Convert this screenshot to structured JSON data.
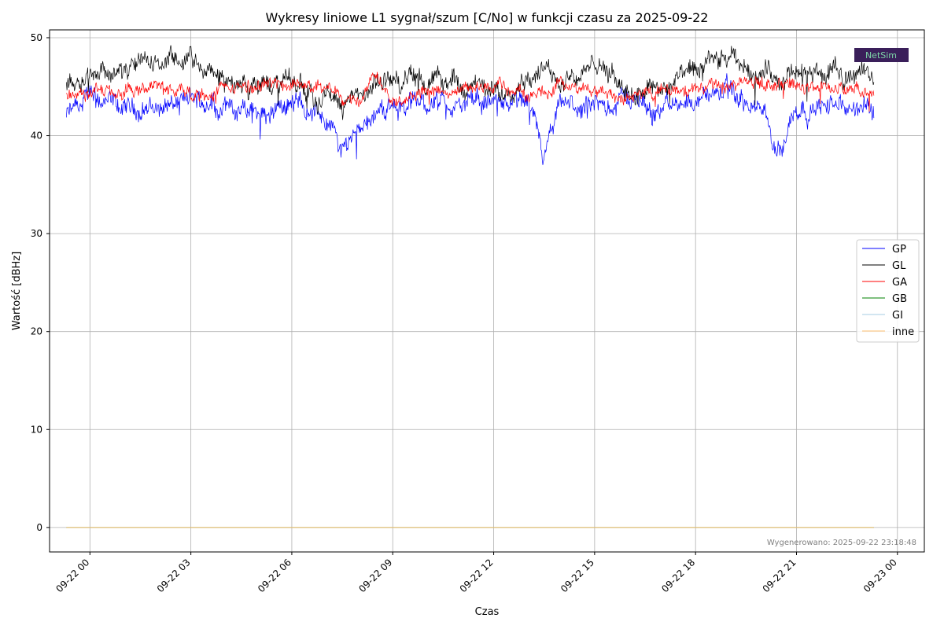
{
  "chart_data": {
    "type": "line",
    "title": "Wykresy liniowe L1 sygnał/szum [C/No] w funkcji czasu za 2025-09-22",
    "xlabel": "Czas",
    "ylabel": "Wartość [dBHz]",
    "ylim": [
      -2.5,
      50.8
    ],
    "xlim": [
      "2025-09-21 22:48",
      "2025-09-23 00:48"
    ],
    "x_start": "2025-09-21 23:18",
    "x_end": "2025-09-22 23:18",
    "grid": true,
    "legend_position": "center-right",
    "y_ticks": [
      0,
      10,
      20,
      30,
      40,
      50
    ],
    "x_ticks": [
      {
        "value": "2025-09-22 00:00",
        "label": "09-22 00"
      },
      {
        "value": "2025-09-22 03:00",
        "label": "09-22 03"
      },
      {
        "value": "2025-09-22 06:00",
        "label": "09-22 06"
      },
      {
        "value": "2025-09-22 09:00",
        "label": "09-22 09"
      },
      {
        "value": "2025-09-22 12:00",
        "label": "09-22 12"
      },
      {
        "value": "2025-09-22 15:00",
        "label": "09-22 15"
      },
      {
        "value": "2025-09-22 18:00",
        "label": "09-22 18"
      },
      {
        "value": "2025-09-22 21:00",
        "label": "09-22 21"
      },
      {
        "value": "2025-09-23 00:00",
        "label": "09-23 00"
      }
    ],
    "series": [
      {
        "name": "GP",
        "color": "#0000ff",
        "x": [
          "2025-09-21 23:18",
          "2025-09-22 00:00",
          "2025-09-22 01:00",
          "2025-09-22 02:00",
          "2025-09-22 03:00",
          "2025-09-22 04:00",
          "2025-09-22 05:00",
          "2025-09-22 06:00",
          "2025-09-22 07:00",
          "2025-09-22 07:30",
          "2025-09-22 08:00",
          "2025-09-22 09:00",
          "2025-09-22 10:00",
          "2025-09-22 11:00",
          "2025-09-22 12:00",
          "2025-09-22 13:00",
          "2025-09-22 13:30",
          "2025-09-22 14:00",
          "2025-09-22 15:00",
          "2025-09-22 16:00",
          "2025-09-22 17:00",
          "2025-09-22 18:00",
          "2025-09-22 19:00",
          "2025-09-22 20:00",
          "2025-09-22 20:30",
          "2025-09-22 21:00",
          "2025-09-22 22:00",
          "2025-09-22 23:18"
        ],
        "values": [
          42.0,
          43.5,
          42.5,
          43.0,
          43.5,
          43.0,
          42.5,
          43.5,
          42.0,
          38.5,
          41.5,
          43.0,
          43.5,
          43.0,
          43.5,
          43.0,
          37.5,
          43.0,
          42.5,
          44.0,
          42.5,
          44.0,
          44.5,
          42.0,
          39.0,
          43.0,
          43.0,
          42.5
        ]
      },
      {
        "name": "GL",
        "color": "#000000",
        "x": [
          "2025-09-21 23:18",
          "2025-09-22 00:00",
          "2025-09-22 01:00",
          "2025-09-22 02:00",
          "2025-09-22 03:00",
          "2025-09-22 04:00",
          "2025-09-22 05:00",
          "2025-09-22 06:00",
          "2025-09-22 07:00",
          "2025-09-22 08:00",
          "2025-09-22 09:00",
          "2025-09-22 10:00",
          "2025-09-22 11:00",
          "2025-09-22 12:00",
          "2025-09-22 13:00",
          "2025-09-22 14:00",
          "2025-09-22 15:00",
          "2025-09-22 16:00",
          "2025-09-22 17:00",
          "2025-09-22 18:00",
          "2025-09-22 19:00",
          "2025-09-22 20:00",
          "2025-09-22 21:00",
          "2025-09-22 22:00",
          "2025-09-22 23:18"
        ],
        "values": [
          45.5,
          47.0,
          46.5,
          47.5,
          47.5,
          45.5,
          45.0,
          45.5,
          44.0,
          43.5,
          46.0,
          45.5,
          45.5,
          44.0,
          46.5,
          46.0,
          47.0,
          45.0,
          45.0,
          46.5,
          47.5,
          46.5,
          46.0,
          46.5,
          46.5
        ]
      },
      {
        "name": "GA",
        "color": "#ff0000",
        "x": [
          "2025-09-21 23:18",
          "2025-09-22 00:00",
          "2025-09-22 01:00",
          "2025-09-22 02:00",
          "2025-09-22 03:00",
          "2025-09-22 04:00",
          "2025-09-22 05:00",
          "2025-09-22 06:00",
          "2025-09-22 07:00",
          "2025-09-22 08:00",
          "2025-09-22 08:30",
          "2025-09-22 09:00",
          "2025-09-22 10:00",
          "2025-09-22 11:00",
          "2025-09-22 12:00",
          "2025-09-22 13:00",
          "2025-09-22 14:00",
          "2025-09-22 15:00",
          "2025-09-22 16:00",
          "2025-09-22 17:00",
          "2025-09-22 18:00",
          "2025-09-22 19:00",
          "2025-09-22 20:00",
          "2025-09-22 21:00",
          "2025-09-22 22:00",
          "2025-09-22 23:18"
        ],
        "values": [
          44.0,
          44.5,
          44.0,
          45.0,
          44.5,
          44.5,
          45.0,
          45.5,
          44.5,
          44.0,
          46.5,
          44.0,
          44.5,
          44.5,
          45.0,
          44.5,
          45.0,
          44.5,
          44.0,
          44.5,
          44.5,
          45.5,
          45.5,
          45.0,
          45.0,
          44.0
        ]
      },
      {
        "name": "GB",
        "color": "#008000",
        "x": [
          "2025-09-21 23:18",
          "2025-09-22 23:18"
        ],
        "values": [
          0,
          0
        ]
      },
      {
        "name": "GI",
        "color": "#a6cee3",
        "x": [
          "2025-09-21 23:18",
          "2025-09-22 23:18"
        ],
        "values": [
          0,
          0
        ]
      },
      {
        "name": "inne",
        "color": "#fdbf6f",
        "x": [
          "2025-09-21 23:18",
          "2025-09-22 23:18"
        ],
        "values": [
          0,
          0
        ]
      }
    ],
    "annotations": {
      "footer": "Wygenerowano: 2025-09-22 23:18:48",
      "logo": "NetSim"
    }
  }
}
